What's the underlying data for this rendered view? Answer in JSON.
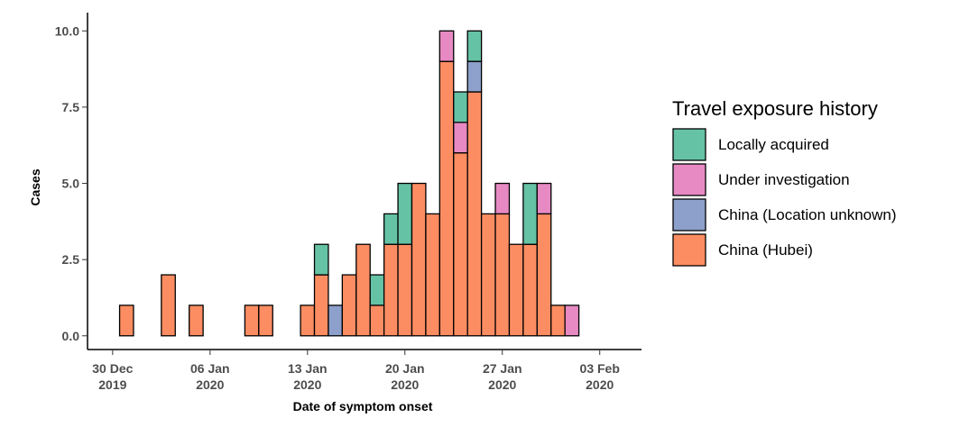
{
  "chart_data": {
    "type": "bar",
    "stacked": true,
    "x_label": "Date of symptom onset",
    "y_label": "Cases",
    "legend_title": "Travel exposure history",
    "x": [
      "2019-12-31",
      "2020-01-01",
      "2020-01-02",
      "2020-01-03",
      "2020-01-04",
      "2020-01-05",
      "2020-01-06",
      "2020-01-07",
      "2020-01-08",
      "2020-01-09",
      "2020-01-10",
      "2020-01-11",
      "2020-01-12",
      "2020-01-13",
      "2020-01-14",
      "2020-01-15",
      "2020-01-16",
      "2020-01-17",
      "2020-01-18",
      "2020-01-19",
      "2020-01-20",
      "2020-01-21",
      "2020-01-22",
      "2020-01-23",
      "2020-01-24",
      "2020-01-25",
      "2020-01-26",
      "2020-01-27",
      "2020-01-28",
      "2020-01-29",
      "2020-01-30",
      "2020-01-31",
      "2020-02-01",
      "2020-02-02"
    ],
    "series": [
      {
        "name": "China (Hubei)",
        "color": "#fc8d62",
        "values": [
          1,
          0,
          0,
          2,
          0,
          1,
          0,
          0,
          0,
          1,
          1,
          0,
          0,
          1,
          2,
          0,
          2,
          3,
          1,
          3,
          3,
          5,
          4,
          9,
          6,
          8,
          4,
          4,
          3,
          3,
          4,
          1,
          0,
          0
        ]
      },
      {
        "name": "China (Location unknown)",
        "color": "#8da0cb",
        "values": [
          0,
          0,
          0,
          0,
          0,
          0,
          0,
          0,
          0,
          0,
          0,
          0,
          0,
          0,
          0,
          1,
          0,
          0,
          0,
          0,
          0,
          0,
          0,
          0,
          0,
          1,
          0,
          0,
          0,
          0,
          0,
          0,
          0,
          0
        ]
      },
      {
        "name": "Under investigation",
        "color": "#e78ac3",
        "values": [
          0,
          0,
          0,
          0,
          0,
          0,
          0,
          0,
          0,
          0,
          0,
          0,
          0,
          0,
          0,
          0,
          0,
          0,
          0,
          0,
          0,
          0,
          0,
          1,
          1,
          0,
          0,
          1,
          0,
          0,
          1,
          0,
          1,
          0
        ]
      },
      {
        "name": "Locally acquired",
        "color": "#66c2a5",
        "values": [
          0,
          0,
          0,
          0,
          0,
          0,
          0,
          0,
          0,
          0,
          0,
          0,
          0,
          0,
          1,
          0,
          0,
          0,
          1,
          1,
          2,
          0,
          0,
          0,
          1,
          1,
          0,
          0,
          0,
          2,
          0,
          0,
          0,
          0
        ]
      }
    ],
    "xlim": [
      "2019-12-28",
      "2020-02-06"
    ],
    "xticks": [
      {
        "value": "2019-12-30",
        "label": "30 Dec\n2019"
      },
      {
        "value": "2020-01-06",
        "label": "06 Jan\n2020"
      },
      {
        "value": "2020-01-13",
        "label": "13 Jan\n2020"
      },
      {
        "value": "2020-01-20",
        "label": "20 Jan\n2020"
      },
      {
        "value": "2020-01-27",
        "label": "27 Jan\n2020"
      },
      {
        "value": "2020-02-03",
        "label": "03 Feb\n2020"
      }
    ],
    "ylim": [
      -0.45,
      10.6
    ],
    "yticks": [
      {
        "value": 0,
        "label": "0.0"
      },
      2.5,
      {
        "value": 5,
        "label": "5.0"
      },
      7.5,
      {
        "value": 10,
        "label": "10.0"
      }
    ],
    "grid": false
  }
}
